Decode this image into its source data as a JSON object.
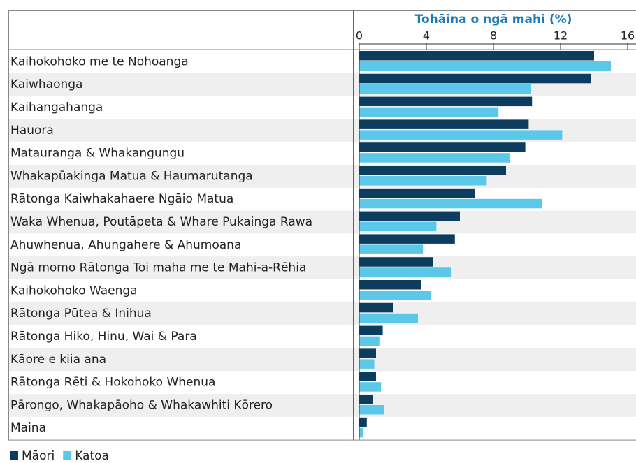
{
  "chart_data": {
    "type": "hbar",
    "x_label": "Tohāina o ngā mahi (%)",
    "categories": [
      "Kaihokohoko me te Nohoanga",
      "Kaiwhaonga",
      "Kaihangahanga",
      "Hauora",
      "Matauranga & Whakangungu",
      "Whakapūakinga Matua & Haumarutanga",
      "Rātonga Kaiwhakahaere Ngāio Matua",
      "Waka Whenua, Poutāpeta & Whare Pukainga Rawa",
      "Ahuwhenua, Ahungahere & Ahumoana",
      "Ngā momo Rātonga Toi maha me te Mahi-a-Rēhia",
      "Kaihokohoko Waenga",
      "Rātonga Pūtea & Inihua",
      "Rātonga Hiko, Hinu, Wai & Para",
      "Kāore e kiia ana",
      "Rātonga Rēti & Hokohoko Whenua",
      "Pārongo, Whakapāoho & Whakawhiti Kōrero",
      "Maina"
    ],
    "series": [
      {
        "name": "Māori",
        "color": "#0d3d5e",
        "values": [
          14.0,
          13.8,
          10.3,
          10.1,
          9.9,
          8.75,
          6.9,
          6.0,
          5.7,
          4.4,
          3.7,
          2.0,
          1.4,
          1.0,
          1.0,
          0.8,
          0.45
        ]
      },
      {
        "name": "Katoa",
        "color": "#5bc8ea",
        "values": [
          15.0,
          10.25,
          8.3,
          12.1,
          9.0,
          7.6,
          10.9,
          4.6,
          3.8,
          5.5,
          4.3,
          3.5,
          1.2,
          0.9,
          1.3,
          1.5,
          0.25
        ]
      }
    ],
    "xlim": [
      0,
      16.5
    ],
    "xticks": [
      0,
      4,
      8,
      12,
      16
    ],
    "legend": "bottom-left"
  }
}
